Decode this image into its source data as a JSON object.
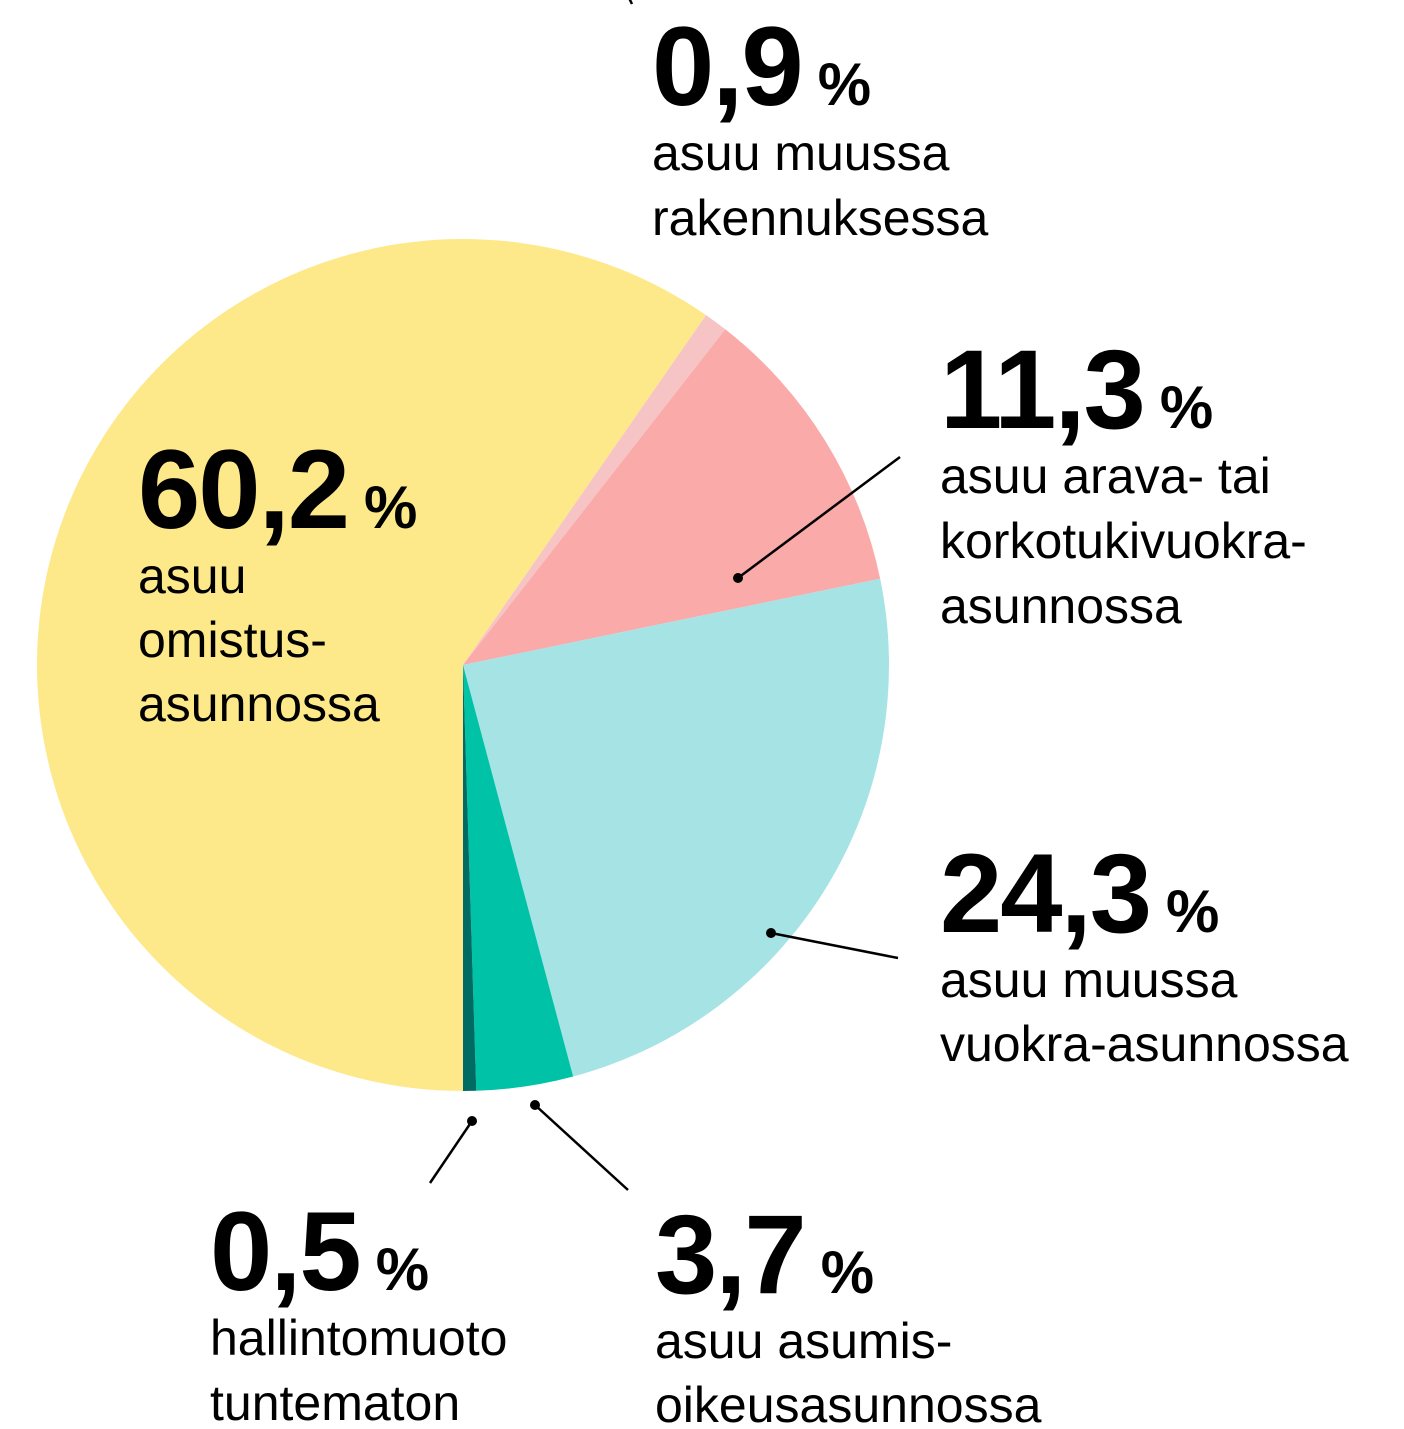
{
  "chart_data": {
    "type": "pie",
    "categories": [
      [
        "asuu",
        "omistus-",
        "asunnossa"
      ],
      [
        "asuu muussa",
        "rakennuksessa"
      ],
      [
        "asuu arava- tai",
        "korkotukivuokra-",
        "asunnossa"
      ],
      [
        "asuu muussa",
        "vuokra-asunnossa"
      ],
      [
        "asuu asumis-",
        "oikeusasunnossa"
      ],
      [
        "hallintomuoto",
        "tuntematon"
      ]
    ],
    "values": [
      60.2,
      0.9,
      11.3,
      24.3,
      3.7,
      0.5
    ],
    "value_labels": [
      "60,2",
      "0,9",
      "11,3",
      "24,3",
      "3,7",
      "0,5"
    ],
    "unit": "%",
    "colors": [
      "#fde98a",
      "#f6c4c4",
      "#fbaaaa",
      "#a6e3e5",
      "#00c2a6",
      "#006b63"
    ]
  }
}
